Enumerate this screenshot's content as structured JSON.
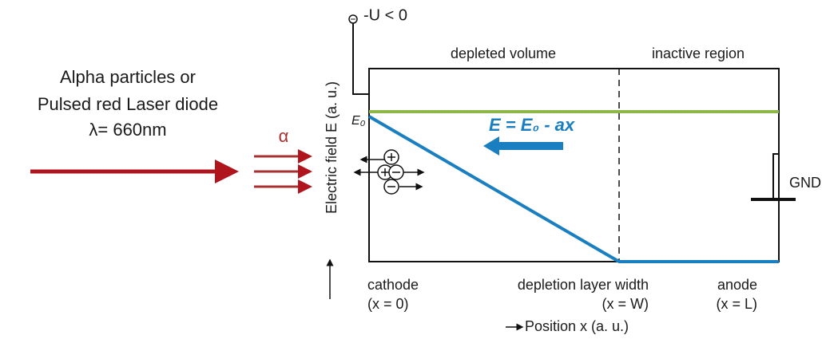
{
  "source": {
    "lines": [
      "Alpha particles or",
      "Pulsed red Laser diode",
      "λ= 660nm"
    ],
    "alpha": "α"
  },
  "bias": "-U < 0",
  "regions": {
    "depleted": "depleted volume",
    "inactive": "inactive region"
  },
  "y_axis": "Electric field E (a. u.)",
  "e0": "E₀",
  "equation": "E = E₀ - ax",
  "ground": "GND",
  "positions": [
    {
      "name": "cathode",
      "coord": "(x = 0)"
    },
    {
      "name": "depletion layer width",
      "coord": "(x = W)"
    },
    {
      "name": "anode",
      "coord": "(x = L)"
    }
  ],
  "x_axis": "Position x (a. u.)"
}
